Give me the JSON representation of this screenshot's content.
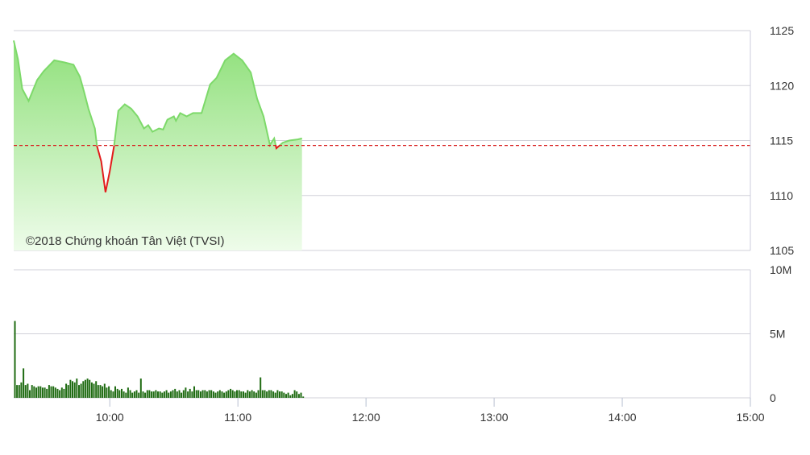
{
  "chart_data": [
    {
      "type": "area",
      "y_axis_position": "right",
      "ylim": [
        1105,
        1125
      ],
      "y_ticks": [
        "1125",
        "1120",
        "1115",
        "1110",
        "1105"
      ],
      "reference_value": 1114.55,
      "colors": {
        "above": "#7dd96a",
        "below": "#e31b1b",
        "reference": "#d91f1f",
        "fill_top": "#8fe07a",
        "fill_bottom": "#eefcea"
      },
      "x": [
        "09:15",
        "09:17",
        "09:19",
        "09:22",
        "09:26",
        "09:29",
        "09:34",
        "09:39",
        "09:43",
        "09:46",
        "09:48",
        "09:50",
        "09:53",
        "09:54",
        "09:56",
        "09:58",
        "10:00",
        "10:02",
        "10:04",
        "10:07",
        "10:10",
        "10:13",
        "10:16",
        "10:18",
        "10:20",
        "10:23",
        "10:25",
        "10:27",
        "10:30",
        "10:31",
        "10:33",
        "10:36",
        "10:39",
        "10:43",
        "10:47",
        "10:50",
        "10:54",
        "10:58",
        "11:02",
        "11:06",
        "11:09",
        "11:12",
        "11:15",
        "11:17",
        "11:18",
        "11:21",
        "11:24",
        "11:28",
        "11:30"
      ],
      "values": [
        1124.1,
        1122.4,
        1119.7,
        1118.6,
        1120.5,
        1121.3,
        1122.3,
        1122.1,
        1121.9,
        1120.8,
        1119.4,
        1117.9,
        1116.1,
        1114.5,
        1113.1,
        1110.3,
        1112.2,
        1114.5,
        1117.7,
        1118.3,
        1117.9,
        1117.2,
        1116.1,
        1116.4,
        1115.8,
        1116.1,
        1116.0,
        1116.9,
        1117.2,
        1116.8,
        1117.5,
        1117.2,
        1117.5,
        1117.5,
        1120.1,
        1120.7,
        1122.3,
        1122.9,
        1122.3,
        1121.2,
        1118.8,
        1117.2,
        1114.6,
        1115.2,
        1114.3,
        1114.8,
        1115.0,
        1115.1,
        1115.2
      ],
      "watermark": "©2018 Chứng khoán Tân Việt (TVSI)",
      "grid": true
    },
    {
      "type": "bar",
      "y_axis_position": "right",
      "ylim": [
        0,
        10
      ],
      "y_ticks": [
        "10M",
        "5M",
        "0"
      ],
      "unit": "M",
      "color": "#1f6b12",
      "start": "09:15",
      "interval": "1min",
      "values": [
        6.0,
        1.0,
        1.0,
        1.2,
        2.3,
        1.0,
        1.1,
        0.6,
        1.0,
        0.9,
        0.8,
        0.9,
        0.9,
        0.8,
        0.8,
        0.7,
        1.0,
        0.9,
        0.9,
        0.8,
        0.7,
        0.6,
        0.8,
        0.7,
        1.1,
        1.0,
        1.4,
        1.3,
        1.2,
        1.5,
        1.0,
        1.1,
        1.3,
        1.4,
        1.5,
        1.4,
        1.2,
        1.1,
        1.3,
        1.0,
        1.0,
        0.9,
        1.1,
        0.8,
        0.9,
        0.6,
        0.5,
        0.9,
        0.7,
        0.6,
        0.7,
        0.5,
        0.4,
        0.8,
        0.6,
        0.4,
        0.5,
        0.6,
        0.4,
        1.5,
        0.5,
        0.4,
        0.6,
        0.6,
        0.5,
        0.5,
        0.6,
        0.5,
        0.5,
        0.4,
        0.5,
        0.6,
        0.4,
        0.5,
        0.6,
        0.7,
        0.5,
        0.6,
        0.4,
        0.6,
        0.8,
        0.5,
        0.7,
        0.5,
        0.9,
        0.6,
        0.6,
        0.5,
        0.6,
        0.6,
        0.5,
        0.6,
        0.6,
        0.5,
        0.4,
        0.5,
        0.6,
        0.5,
        0.4,
        0.5,
        0.6,
        0.7,
        0.6,
        0.5,
        0.6,
        0.6,
        0.5,
        0.5,
        0.4,
        0.6,
        0.5,
        0.6,
        0.5,
        0.4,
        0.6,
        1.6,
        0.6,
        0.6,
        0.5,
        0.6,
        0.6,
        0.5,
        0.4,
        0.6,
        0.5,
        0.5,
        0.4,
        0.3,
        0.4,
        0.2,
        0.3,
        0.6,
        0.5,
        0.3,
        0.4,
        0.1
      ],
      "grid": true
    }
  ],
  "x_axis": {
    "range": [
      "09:15",
      "15:00"
    ],
    "ticks": [
      "10:00",
      "11:00",
      "12:00",
      "13:00",
      "14:00",
      "15:00"
    ]
  }
}
